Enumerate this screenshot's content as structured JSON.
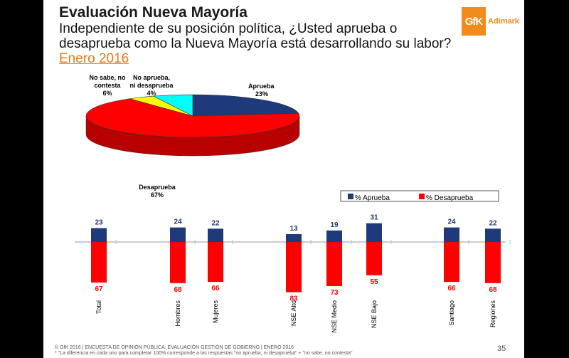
{
  "title": "Evaluación Nueva Mayoría",
  "question": "Independiente de su posición política, ¿Usted aprueba o desaprueba como la Nueva Mayoría está desarrollando su labor?",
  "date": "Enero 2016",
  "colors": {
    "aprueba": "#1f3a7a",
    "desaprueba": "#ff0000",
    "ninguno": "#ffff00",
    "nosabe": "#00ffff",
    "aprueba_text": "#1f3a7a",
    "desaprueba_text": "#ff0000"
  },
  "chart_data": [
    {
      "type": "pie",
      "slices": [
        {
          "label": "Aprueba",
          "value": 23,
          "value_label": "23%",
          "color": "#1f3a7a"
        },
        {
          "label": "Desaprueba",
          "value": 67,
          "value_label": "67%",
          "color": "#ff0000"
        },
        {
          "label": "No aprueba, ni desaprueba",
          "value": 4,
          "value_label": "4%",
          "color": "#ffff00"
        },
        {
          "label": "No sabe, no contesta",
          "value": 6,
          "value_label": "6%",
          "color": "#00ffff"
        }
      ]
    },
    {
      "type": "bar",
      "legend": [
        {
          "name": "% Aprueba",
          "color": "#1f3a7a"
        },
        {
          "name": "% Desaprueba",
          "color": "#ff0000"
        }
      ],
      "legend_position": "top-right",
      "categories": [
        "Total",
        "Hombres",
        "Mujeres",
        "NSE Alto",
        "NSE Medio",
        "NSE Bajo",
        "Santiago",
        "Regiones"
      ],
      "series": [
        {
          "name": "% Aprueba",
          "values": [
            23,
            24,
            22,
            13,
            19,
            31,
            24,
            22
          ]
        },
        {
          "name": "% Desaprueba",
          "values": [
            67,
            68,
            66,
            83,
            73,
            55,
            66,
            68
          ]
        }
      ]
    }
  ],
  "footer": {
    "source": "© GfK 2016 | ENCUESTA DE OPINIÓN PÚBLICA: EVALUACIÓN GESTIÓN DE GOBIERNO | ENERO 2016",
    "note": "* \"La diferencia en cada uno para completar 100% corresponde a las respuestas \"no aprueba, ni desaprueba\" + \"no sabe, no contesta\"",
    "page": "35"
  }
}
